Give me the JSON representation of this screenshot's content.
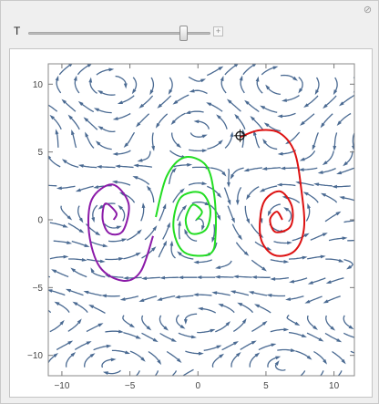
{
  "controls": {
    "parameter_label": "T",
    "slider_value_fraction": 0.85,
    "plus_icon": "plus-icon",
    "close_icon": "close-icon"
  },
  "chart_data": {
    "type": "streamplot",
    "title": "",
    "xlabel": "",
    "ylabel": "",
    "xlim": [
      -11,
      11.5
    ],
    "ylim": [
      -11.5,
      11.5
    ],
    "x_ticks": [
      -10,
      -5,
      0,
      5,
      10
    ],
    "x_tick_labels": [
      "−10",
      "−5",
      "0",
      "5",
      "10"
    ],
    "y_ticks": [
      -10,
      -5,
      0,
      5,
      10
    ],
    "y_tick_labels": [
      "−10",
      "−5",
      "0",
      "5",
      "10"
    ],
    "grid": false,
    "stream_color": "#4a6a92",
    "trajectories": [
      {
        "color": "#8b1aa8",
        "points": [
          [
            -6.2,
            0.0
          ],
          [
            -6.0,
            0.5
          ],
          [
            -6.8,
            1.2
          ],
          [
            -7.0,
            0.0
          ],
          [
            -6.5,
            -1.0
          ],
          [
            -5.5,
            -0.8
          ],
          [
            -5.1,
            1.2
          ],
          [
            -6.3,
            2.6
          ],
          [
            -7.8,
            1.5
          ],
          [
            -8.0,
            -1.0
          ],
          [
            -7.2,
            -3.5
          ],
          [
            -5.5,
            -4.5
          ],
          [
            -4.2,
            -3.8
          ],
          [
            -3.3,
            -1.2
          ]
        ]
      },
      {
        "color": "#22dd22",
        "points": [
          [
            -0.1,
            0.0
          ],
          [
            0.3,
            0.6
          ],
          [
            -0.4,
            1.1
          ],
          [
            -0.9,
            0.0
          ],
          [
            -0.5,
            -1.0
          ],
          [
            0.6,
            -0.7
          ],
          [
            0.9,
            0.8
          ],
          [
            0.2,
            2.0
          ],
          [
            -1.3,
            1.6
          ],
          [
            -1.8,
            -0.6
          ],
          [
            -1.0,
            -2.4
          ],
          [
            0.9,
            -2.5
          ],
          [
            1.3,
            -1.0
          ],
          [
            1.2,
            1.8
          ],
          [
            0.6,
            4.0
          ],
          [
            -1.0,
            4.6
          ],
          [
            -2.3,
            3.2
          ],
          [
            -3.1,
            0.2
          ]
        ]
      },
      {
        "color": "#dd1111",
        "points": [
          [
            6.2,
            0.0
          ],
          [
            5.8,
            0.6
          ],
          [
            5.3,
            0.0
          ],
          [
            5.7,
            -0.9
          ],
          [
            6.8,
            -0.5
          ],
          [
            6.9,
            1.0
          ],
          [
            6.0,
            2.1
          ],
          [
            4.8,
            1.2
          ],
          [
            4.6,
            -1.3
          ],
          [
            5.6,
            -2.6
          ],
          [
            7.1,
            -2.3
          ],
          [
            7.8,
            -0.6
          ],
          [
            7.6,
            2.2
          ],
          [
            7.1,
            5.0
          ],
          [
            6.0,
            6.4
          ],
          [
            4.5,
            6.6
          ],
          [
            3.1,
            6.1
          ]
        ]
      }
    ],
    "start_marker": {
      "x": 3.1,
      "y": 6.2
    }
  }
}
